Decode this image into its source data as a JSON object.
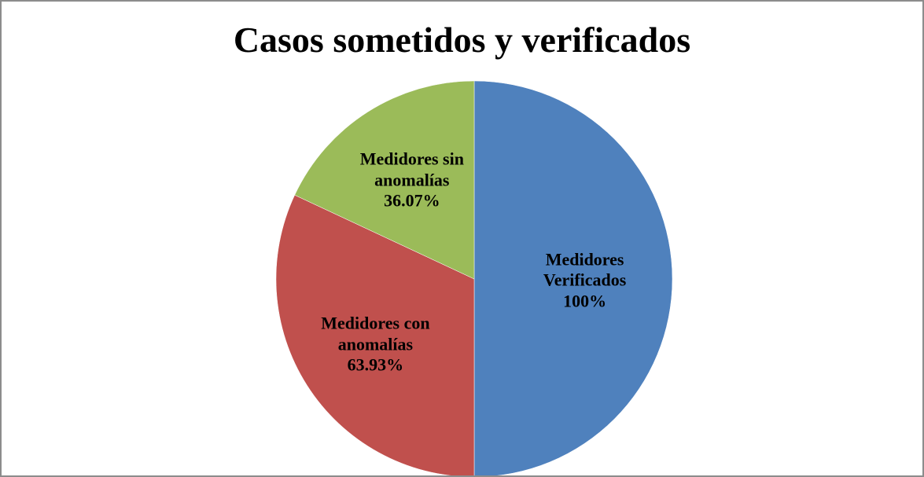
{
  "chart_data": {
    "type": "pie",
    "title": "Casos sometidos y verificados",
    "categories": [
      "Medidores Verificados",
      "Medidores con anomalías",
      "Medidores sin anomalías"
    ],
    "values": [
      100,
      63.93,
      36.07
    ],
    "value_labels": [
      "100%",
      "63.93%",
      "36.07%"
    ],
    "colors": [
      "#4f81bd",
      "#c0504d",
      "#9bbb59"
    ]
  }
}
